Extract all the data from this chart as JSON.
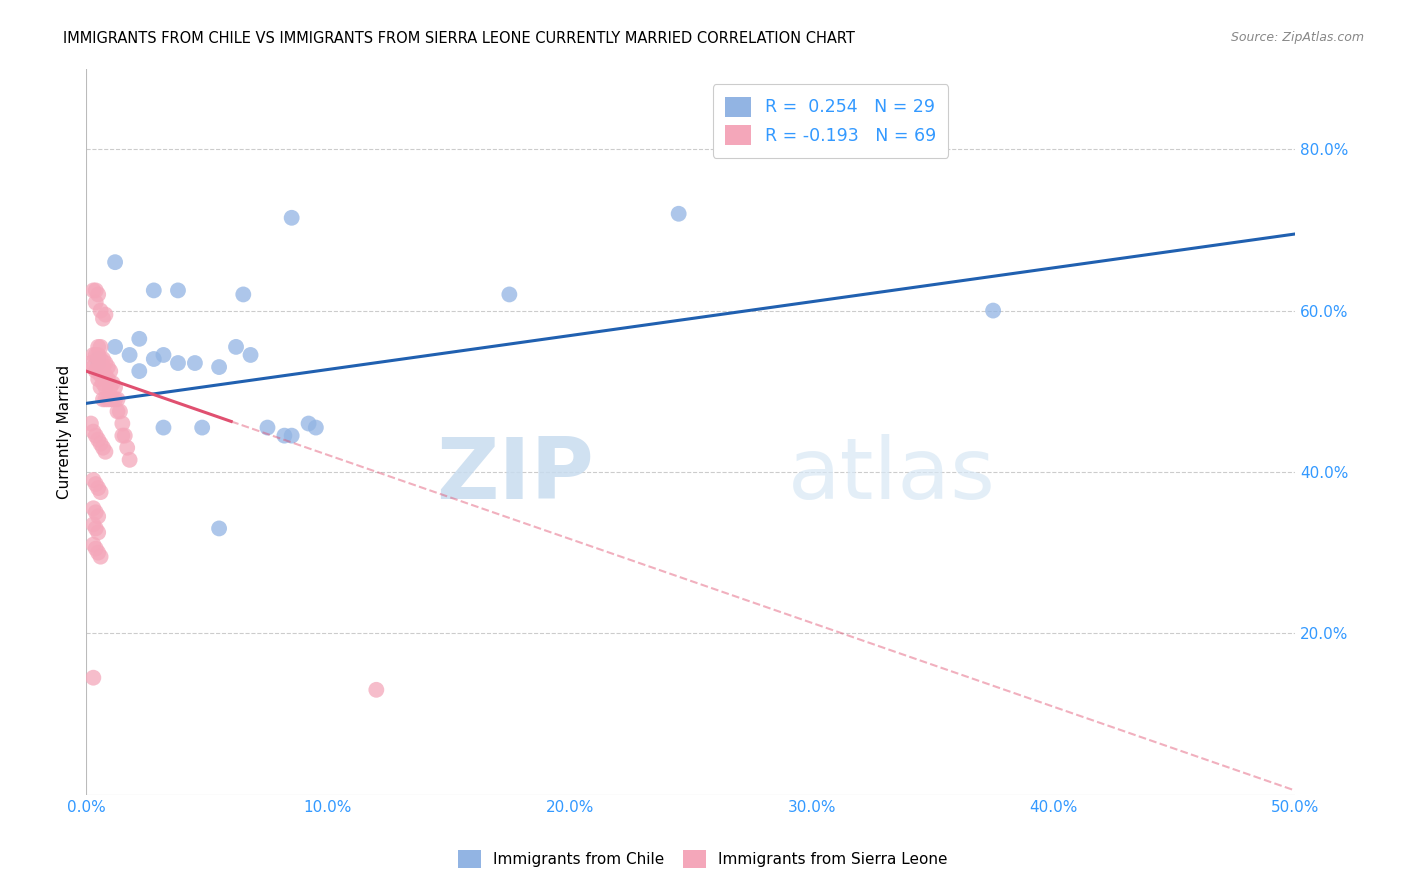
{
  "title": "IMMIGRANTS FROM CHILE VS IMMIGRANTS FROM SIERRA LEONE CURRENTLY MARRIED CORRELATION CHART",
  "source": "Source: ZipAtlas.com",
  "ylabel": "Currently Married",
  "xlim": [
    0.0,
    0.5
  ],
  "ylim": [
    0.0,
    0.9
  ],
  "yticks": [
    0.2,
    0.4,
    0.6,
    0.8
  ],
  "ytick_labels": [
    "20.0%",
    "40.0%",
    "60.0%",
    "80.0%"
  ],
  "xticks": [
    0.0,
    0.1,
    0.2,
    0.3,
    0.4,
    0.5
  ],
  "xtick_labels": [
    "0.0%",
    "10.0%",
    "20.0%",
    "30.0%",
    "40.0%",
    "50.0%"
  ],
  "legend1_label": "R =  0.254   N = 29",
  "legend2_label": "R = -0.193   N = 69",
  "color_chile": "#92B4E3",
  "color_sierra": "#F4A7BA",
  "line_chile": "#2060B0",
  "line_sierra": "#E05070",
  "watermark_zip": "ZIP",
  "watermark_atlas": "atlas",
  "chile_x": [
    0.005,
    0.012,
    0.018,
    0.022,
    0.028,
    0.032,
    0.038,
    0.045,
    0.055,
    0.062,
    0.068,
    0.075,
    0.082,
    0.092,
    0.085,
    0.095,
    0.028,
    0.038,
    0.048,
    0.055,
    0.065,
    0.085,
    0.175,
    0.245,
    0.375,
    0.005,
    0.012,
    0.022,
    0.032
  ],
  "chile_y": [
    0.535,
    0.555,
    0.545,
    0.565,
    0.54,
    0.545,
    0.535,
    0.535,
    0.53,
    0.555,
    0.545,
    0.455,
    0.445,
    0.46,
    0.715,
    0.455,
    0.625,
    0.625,
    0.455,
    0.33,
    0.62,
    0.445,
    0.62,
    0.72,
    0.6,
    0.54,
    0.66,
    0.525,
    0.455
  ],
  "sierra_x": [
    0.002,
    0.003,
    0.003,
    0.004,
    0.004,
    0.005,
    0.005,
    0.005,
    0.005,
    0.006,
    0.006,
    0.006,
    0.006,
    0.007,
    0.007,
    0.007,
    0.007,
    0.008,
    0.008,
    0.008,
    0.008,
    0.009,
    0.009,
    0.009,
    0.01,
    0.01,
    0.01,
    0.011,
    0.011,
    0.012,
    0.012,
    0.013,
    0.013,
    0.014,
    0.015,
    0.015,
    0.016,
    0.017,
    0.018,
    0.003,
    0.004,
    0.005,
    0.006,
    0.007,
    0.008,
    0.002,
    0.003,
    0.004,
    0.005,
    0.006,
    0.007,
    0.008,
    0.003,
    0.004,
    0.005,
    0.006,
    0.003,
    0.004,
    0.005,
    0.003,
    0.004,
    0.005,
    0.003,
    0.004,
    0.005,
    0.006,
    0.003,
    0.004,
    0.12
  ],
  "sierra_y": [
    0.535,
    0.545,
    0.53,
    0.545,
    0.525,
    0.555,
    0.545,
    0.53,
    0.515,
    0.555,
    0.54,
    0.52,
    0.505,
    0.54,
    0.53,
    0.51,
    0.49,
    0.535,
    0.52,
    0.505,
    0.49,
    0.53,
    0.515,
    0.49,
    0.525,
    0.505,
    0.49,
    0.51,
    0.49,
    0.505,
    0.49,
    0.49,
    0.475,
    0.475,
    0.46,
    0.445,
    0.445,
    0.43,
    0.415,
    0.625,
    0.61,
    0.62,
    0.6,
    0.59,
    0.595,
    0.46,
    0.45,
    0.445,
    0.44,
    0.435,
    0.43,
    0.425,
    0.39,
    0.385,
    0.38,
    0.375,
    0.355,
    0.35,
    0.345,
    0.335,
    0.33,
    0.325,
    0.31,
    0.305,
    0.3,
    0.295,
    0.145,
    0.625,
    0.13
  ],
  "chile_trend_x": [
    0.0,
    0.5
  ],
  "chile_trend_y": [
    0.485,
    0.695
  ],
  "sierra_trend_x0": 0.0,
  "sierra_trend_x_solid_end": 0.06,
  "sierra_trend_x1": 0.5,
  "sierra_trend_y0": 0.525,
  "sierra_trend_y1": 0.005
}
